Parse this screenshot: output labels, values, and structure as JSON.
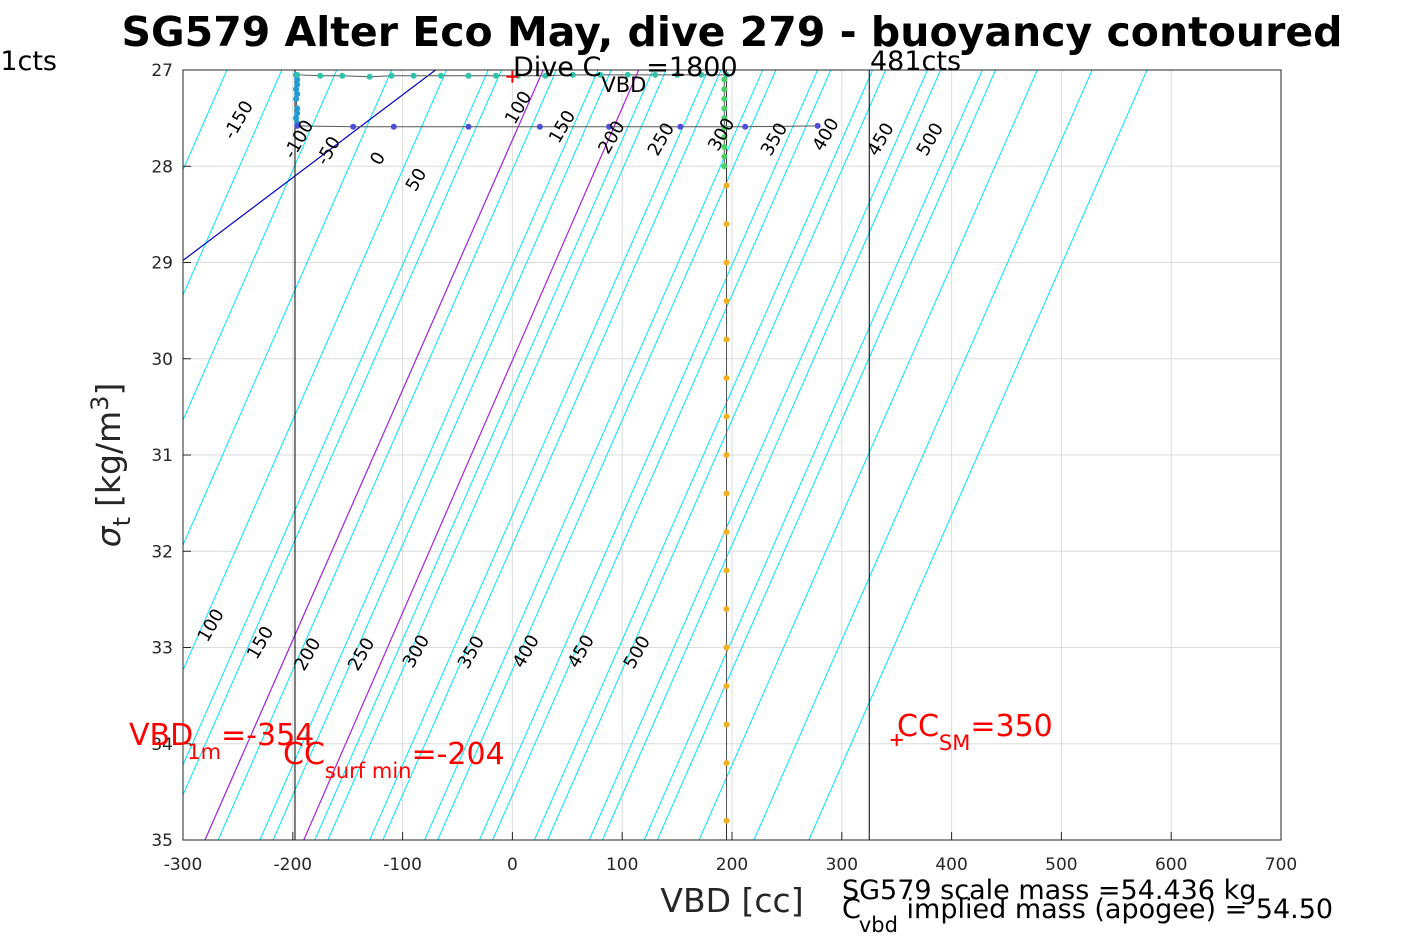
{
  "chart_data": {
    "type": "scatter",
    "title": "SG579 Alter Eco May, dive 279 - buoyancy contoured",
    "xlabel": "VBD [cc]",
    "ylabel_parts": {
      "sigma": "σ",
      "sub": "t",
      "unit": "[kg/m",
      "sup": "3",
      "close": "]"
    },
    "xlim": [
      -300,
      700
    ],
    "ylim": [
      27,
      35
    ],
    "y_reversed": true,
    "grid": true,
    "xticks": [
      -300,
      -200,
      -100,
      0,
      100,
      200,
      300,
      400,
      500,
      600,
      700
    ],
    "yticks": [
      27,
      28,
      29,
      30,
      31,
      32,
      33,
      34,
      35
    ],
    "xtick_labels": [
      "-300",
      "-200",
      "-100",
      "0",
      "100",
      "200",
      "300",
      "400",
      "500",
      "600",
      "700"
    ],
    "ytick_labels": [
      "27",
      "28",
      "29",
      "30",
      "31",
      "32",
      "33",
      "34",
      "35"
    ],
    "contours_top": {
      "levels": [
        -150,
        -100,
        -50,
        0,
        50,
        100,
        150,
        200,
        250,
        300,
        350,
        400,
        450,
        500
      ],
      "labels": [
        "-150",
        "-100",
        "-50",
        "0",
        "50",
        "100",
        "150",
        "200",
        "250",
        "300",
        "350",
        "400",
        "450",
        "500"
      ],
      "label_pos": [
        [
          -245,
          27.55
        ],
        [
          -190,
          27.75
        ],
        [
          -163,
          27.87
        ],
        [
          -118,
          27.95
        ],
        [
          -83,
          28.17
        ],
        [
          10,
          27.42
        ],
        [
          50,
          27.62
        ],
        [
          95,
          27.73
        ],
        [
          140,
          27.75
        ],
        [
          195,
          27.7
        ],
        [
          243,
          27.75
        ],
        [
          290,
          27.7
        ],
        [
          340,
          27.75
        ],
        [
          385,
          27.75
        ]
      ]
    },
    "contours_bottom": {
      "labels": [
        "100",
        "150",
        "200",
        "250",
        "300",
        "350",
        "400",
        "450",
        "500"
      ],
      "label_pos": [
        [
          -270,
          32.8
        ],
        [
          -225,
          32.98
        ],
        [
          -182,
          33.1
        ],
        [
          -133,
          33.1
        ],
        [
          -83,
          33.07
        ],
        [
          -33,
          33.08
        ],
        [
          17,
          33.07
        ],
        [
          67,
          33.07
        ],
        [
          118,
          33.08
        ]
      ]
    },
    "contour_lines": {
      "cyan_x_at_35": [
        -330,
        -280,
        -230,
        -180,
        -130,
        -80,
        -30,
        20,
        70,
        120,
        170,
        220,
        270
      ],
      "cyan_x_at_27": [
        -260,
        -210,
        -160,
        -110,
        -60,
        -10,
        40,
        90,
        140,
        190,
        240,
        290,
        340,
        390,
        440
      ],
      "highlight": [
        {
          "color": "#0000cc",
          "x27": -70,
          "x35": -1000
        },
        {
          "color": "#aa22dd",
          "x27": 28,
          "x35": -280
        },
        {
          "color": "#aa22dd",
          "x27": 115,
          "x35": -190
        }
      ],
      "slope_cc_per_unit": 38.5
    },
    "vbd_lines": {
      "left_x": -198,
      "right_x": 325,
      "green_x": 193,
      "orange_x": 195
    },
    "series": [
      {
        "color": "#1f9bd6",
        "x": [
          -197,
          -196,
          -196,
          -197,
          -196,
          -197,
          -196,
          -196,
          -197,
          -196
        ],
        "y": [
          27.05,
          27.1,
          27.15,
          27.2,
          27.25,
          27.3,
          27.4,
          27.45,
          27.5,
          27.55
        ]
      },
      {
        "color": "#2fc4a8",
        "x": [
          -196,
          -175,
          -155,
          -130,
          -110,
          -90,
          -65,
          -40,
          -15,
          5,
          30,
          55,
          80,
          105,
          130,
          150,
          172,
          195
        ],
        "y": [
          27.05,
          27.06,
          27.06,
          27.07,
          27.06,
          27.06,
          27.06,
          27.06,
          27.06,
          27.06,
          27.06,
          27.05,
          27.05,
          27.05,
          27.05,
          27.05,
          27.05,
          27.05
        ]
      },
      {
        "color": "#4d4dd8",
        "x": [
          -196,
          -145,
          -108,
          -40,
          25,
          88,
          153,
          212,
          278
        ],
        "y": [
          27.58,
          27.59,
          27.59,
          27.59,
          27.59,
          27.59,
          27.59,
          27.59,
          27.58
        ]
      },
      {
        "color": "#4cd06a",
        "x": [
          193,
          193,
          193,
          193,
          193,
          193,
          193,
          193,
          193,
          193
        ],
        "y": [
          27.1,
          27.2,
          27.3,
          27.4,
          27.5,
          27.6,
          27.7,
          27.8,
          27.9,
          28.0
        ]
      },
      {
        "color": "#f0b020",
        "x": [
          195,
          195,
          195,
          195,
          195,
          195,
          195,
          195,
          195,
          195,
          195,
          195,
          195,
          195,
          195,
          195,
          195
        ],
        "y": [
          28.2,
          28.6,
          29.0,
          29.4,
          29.8,
          30.2,
          30.6,
          31.0,
          31.4,
          31.8,
          32.2,
          32.6,
          33.0,
          33.4,
          33.8,
          34.2,
          34.8
        ]
      }
    ],
    "markers": [
      {
        "color": "#ff0000",
        "x": 0,
        "y": 27.07
      },
      {
        "color": "#ff0000",
        "x": 350,
        "y": 33.96
      }
    ],
    "annotations": {
      "dive_main": "Dive C",
      "dive_sub": "VBD",
      "dive_val": "=1800",
      "cts_left": "1cts",
      "cts_right": "481cts",
      "vbd1m_main": "VBD",
      "vbd1m_sub": "1m",
      "vbd1m_val": "=-354",
      "ccsurf_main": "CC",
      "ccsurf_sub": "surf min",
      "ccsurf_val": "=-204",
      "ccsm_main": "CC",
      "ccsm_sub": "SM",
      "ccsm_val": "=350",
      "scale_mass": "SG579 scale mass =54.436 kg",
      "implied_main": "C",
      "implied_sub": "vbd",
      "implied_val": " implied mass (apogee) = 54.50"
    }
  }
}
